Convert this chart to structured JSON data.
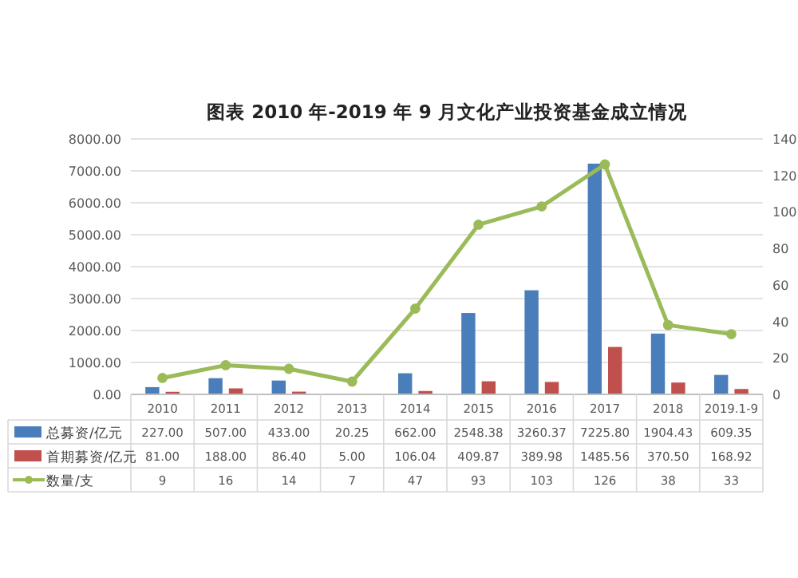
{
  "chart_data": {
    "type": "bar",
    "title": "图表  2010 年-2019 年 9 月文化产业投资基金成立情况",
    "categories": [
      "2010",
      "2011",
      "2012",
      "2013",
      "2014",
      "2015",
      "2016",
      "2017",
      "2018",
      "2019.1-9"
    ],
    "series": [
      {
        "name": "总募资/亿元",
        "color": "#4a7ebb",
        "values": [
          227.0,
          507.0,
          433.0,
          20.25,
          662.0,
          2548.38,
          3260.37,
          7225.8,
          1904.43,
          609.35
        ],
        "value_labels": [
          "227.00",
          "507.00",
          "433.00",
          "20.25",
          "662.00",
          "2548.38",
          "3260.37",
          "7225.80",
          "1904.43",
          "609.35"
        ]
      },
      {
        "name": "首期募资/亿元",
        "color": "#c0504d",
        "values": [
          81.0,
          188.0,
          86.4,
          5.0,
          106.04,
          409.87,
          389.98,
          1485.56,
          370.5,
          168.92
        ],
        "value_labels": [
          "81.00",
          "188.00",
          "86.40",
          "5.00",
          "106.04",
          "409.87",
          "389.98",
          "1485.56",
          "370.50",
          "168.92"
        ]
      },
      {
        "name": "数量/支",
        "type": "line",
        "axis": "y2",
        "marker": "circle",
        "color": "#9bbb59",
        "values": [
          9,
          16,
          14,
          7,
          47,
          93,
          103,
          126,
          38,
          33
        ],
        "value_labels": [
          "9",
          "16",
          "14",
          "7",
          "47",
          "93",
          "103",
          "126",
          "38",
          "33"
        ]
      }
    ],
    "ylim": [
      0,
      8000
    ],
    "yticks": [
      {
        "value": 0,
        "label": "0.00"
      },
      {
        "value": 1000,
        "label": "1000.00"
      },
      {
        "value": 2000,
        "label": "2000.00"
      },
      {
        "value": 3000,
        "label": "3000.00"
      },
      {
        "value": 4000,
        "label": "4000.00"
      },
      {
        "value": 5000,
        "label": "5000.00"
      },
      {
        "value": 6000,
        "label": "6000.00"
      },
      {
        "value": 7000,
        "label": "7000.00"
      },
      {
        "value": 8000,
        "label": "8000.00"
      }
    ],
    "y2lim": [
      0,
      140
    ],
    "y2ticks": [
      0,
      20,
      40,
      60,
      80,
      100,
      120,
      140
    ],
    "grid": "y",
    "legend": "bottom"
  }
}
